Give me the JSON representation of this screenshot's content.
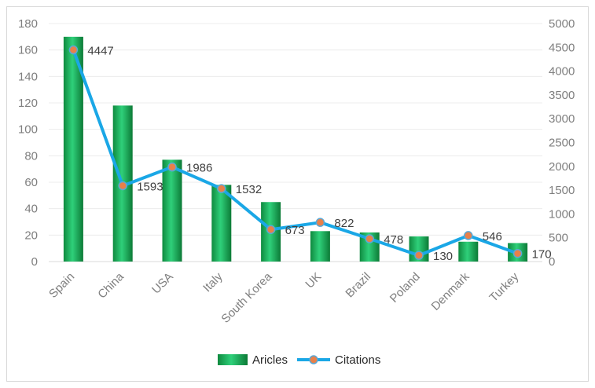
{
  "chart_data": {
    "type": "bar",
    "categories": [
      "Spain",
      "China",
      "USA",
      "Italy",
      "South Korea",
      "UK",
      "Brazil",
      "Poland",
      "Denmark",
      "Turkey"
    ],
    "series": [
      {
        "name": "Aricles",
        "type": "bar",
        "axis": "left",
        "color": "#1fb35a",
        "values": [
          170,
          118,
          77,
          58,
          45,
          23,
          22,
          19,
          15,
          14
        ]
      },
      {
        "name": "Citations",
        "type": "line",
        "axis": "right",
        "color": "#1aa7e6",
        "marker_color": "#e8804a",
        "values": [
          4447,
          1593,
          1986,
          1532,
          673,
          822,
          478,
          130,
          546,
          170
        ],
        "data_labels": [
          "4447",
          "1593",
          "1986",
          "1532",
          "673",
          "822",
          "478",
          "130",
          "546",
          "170"
        ]
      }
    ],
    "y_left": {
      "ylim": [
        0,
        180
      ],
      "ticks": [
        "0",
        "20",
        "40",
        "60",
        "80",
        "100",
        "120",
        "140",
        "160",
        "180"
      ]
    },
    "y_right": {
      "ylim": [
        0,
        5000
      ],
      "ticks": [
        "0",
        "500",
        "1000",
        "1500",
        "2000",
        "2500",
        "3000",
        "3500",
        "4000",
        "4500",
        "5000"
      ]
    },
    "grid": true,
    "legend_position": "bottom",
    "title": "",
    "xlabel": "",
    "ylabel": ""
  }
}
